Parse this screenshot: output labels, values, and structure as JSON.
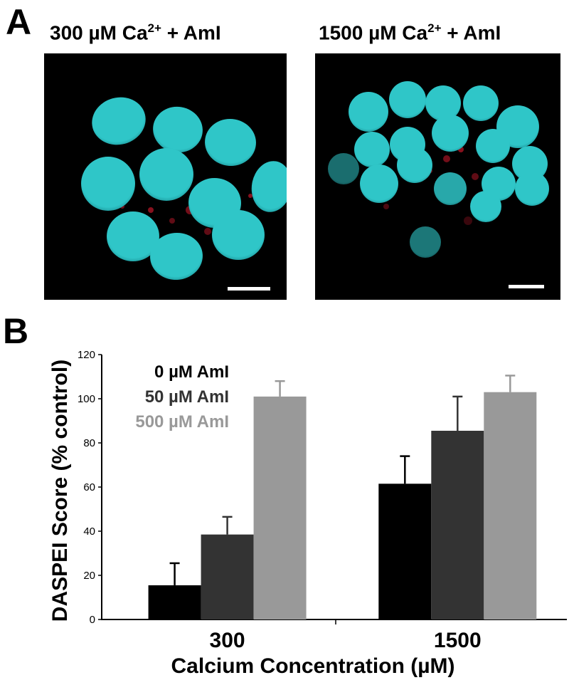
{
  "panel_a": {
    "letter": "A",
    "images": [
      {
        "title": "300 µM Ca",
        "superscript": "2+",
        "suffix": " + AmI"
      },
      {
        "title": "1500 µM Ca",
        "superscript": "2+",
        "suffix": " + AmI"
      }
    ]
  },
  "panel_b": {
    "letter": "B"
  },
  "colors": {
    "nucleus": "#2fc6c8",
    "nucleus_dark": "#1a8f93",
    "red_stain": "#c0182a",
    "series_0": "#000000",
    "series_50": "#333333",
    "series_500": "#999999"
  },
  "chart_data": {
    "type": "bar",
    "categories": [
      "300",
      "1500"
    ],
    "series": [
      {
        "name": "0 µM AmI",
        "values": [
          15.5,
          61.5
        ],
        "errors": [
          10,
          12.5
        ],
        "color": "#000000"
      },
      {
        "name": "50 µM AmI",
        "values": [
          38.5,
          85.5
        ],
        "errors": [
          8,
          15.5
        ],
        "color": "#333333"
      },
      {
        "name": "500 µM AmI",
        "values": [
          101,
          103
        ],
        "errors": [
          7,
          7.5
        ],
        "color": "#999999"
      }
    ],
    "xlabel": "Calcium Concentration (µM)",
    "ylabel": "DASPEI Score (% control)",
    "ylim": [
      0,
      120
    ],
    "yticks": [
      "0",
      "20",
      "40",
      "60",
      "80",
      "100",
      "120"
    ],
    "legend_position": "top-left",
    "grid": false
  }
}
